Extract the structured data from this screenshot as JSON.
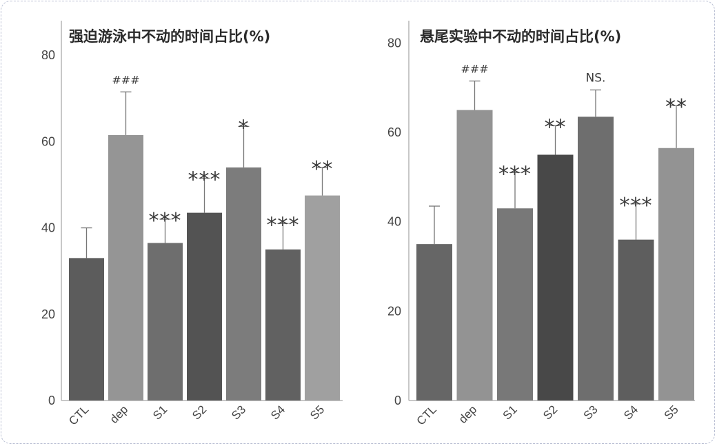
{
  "chart_data": [
    {
      "type": "bar",
      "title": "强迫游泳中不动的时间占比(%)",
      "categories": [
        "CTL",
        "dep",
        "S1",
        "S2",
        "S3",
        "S4",
        "S5"
      ],
      "values": [
        33,
        61.5,
        36.5,
        43.5,
        54,
        35,
        47.5
      ],
      "errors": [
        7,
        10,
        5.5,
        8,
        9.5,
        6,
        6.5
      ],
      "annotations": [
        "",
        "###",
        "***",
        "***",
        "*",
        "***",
        "**"
      ],
      "bar_colors": [
        "#5c5c5c",
        "#959595",
        "#6e6e6e",
        "#535353",
        "#7c7c7c",
        "#616161",
        "#a0a0a0"
      ],
      "yticks": [
        0,
        20,
        40,
        60,
        80
      ],
      "ylim": [
        0,
        88
      ],
      "grid": false
    },
    {
      "type": "bar",
      "title": "悬尾实验中不动的时间占比(%)",
      "categories": [
        "CTL",
        "dep",
        "S1",
        "S2",
        "S3",
        "S4",
        "S5"
      ],
      "values": [
        35,
        65,
        43,
        55,
        63.5,
        36,
        56.5
      ],
      "errors": [
        8.5,
        6.5,
        8,
        6.5,
        6,
        8,
        9.5
      ],
      "annotations": [
        "",
        "###",
        "***",
        "**",
        "NS.",
        "***",
        "**"
      ],
      "bar_colors": [
        "#666666",
        "#939393",
        "#787878",
        "#484848",
        "#6e6e6e",
        "#5e5e5e",
        "#939393"
      ],
      "yticks": [
        0,
        20,
        40,
        60,
        80
      ],
      "ylim": [
        0,
        85
      ],
      "grid": false
    }
  ]
}
